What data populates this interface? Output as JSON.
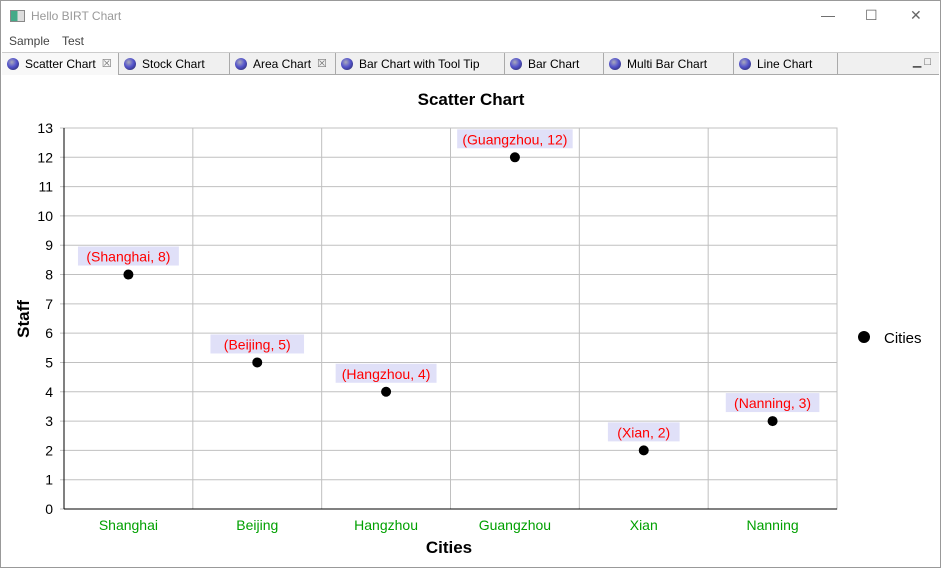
{
  "window": {
    "title": "Hello BIRT Chart",
    "app_icon": "window-icon",
    "controls": [
      "minimize",
      "maximize",
      "close"
    ]
  },
  "menu": [
    "Sample",
    "Test"
  ],
  "tabs": [
    {
      "label": "Scatter Chart",
      "closable": true,
      "active": true
    },
    {
      "label": "Stock Chart",
      "closable": false
    },
    {
      "label": "Area Chart",
      "closable": true
    },
    {
      "label": "Bar Chart with Tool Tip",
      "closable": false
    },
    {
      "label": "Bar Chart",
      "closable": false
    },
    {
      "label": "Multi Bar Chart",
      "closable": false
    },
    {
      "label": "Line Chart",
      "closable": false
    }
  ],
  "chart_data": {
    "type": "scatter",
    "title": "Scatter Chart",
    "xlabel": "Cities",
    "ylabel": "Staff",
    "categories": [
      "Shanghai",
      "Beijing",
      "Hangzhou",
      "Guangzhou",
      "Xian",
      "Nanning"
    ],
    "series": [
      {
        "name": "Cities",
        "values": [
          8,
          5,
          4,
          12,
          2,
          3
        ]
      }
    ],
    "data_labels": [
      "(Shanghai, 8)",
      "(Beijing, 5)",
      "(Hangzhou, 4)",
      "(Guangzhou, 12)",
      "(Xian, 2)",
      "(Nanning, 3)"
    ],
    "ylim": [
      0,
      13
    ],
    "ytick_step": 1,
    "grid": true,
    "legend": "right",
    "colors": {
      "marker": "#000000",
      "label_text": "#ff0000",
      "label_bg": "#e0e0f8",
      "xtick": "#00a000",
      "grid": "#c0c0c0"
    }
  }
}
